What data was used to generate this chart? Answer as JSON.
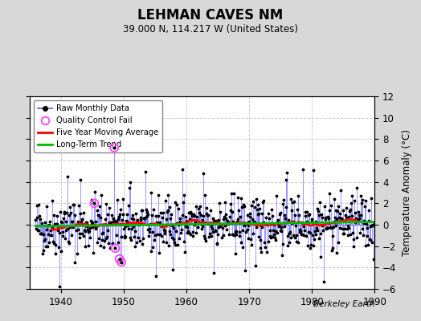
{
  "title": "LEHMAN CAVES NM",
  "subtitle": "39.000 N, 114.217 W (United States)",
  "ylabel": "Temperature Anomaly (°C)",
  "credit": "Berkeley Earth",
  "year_start": 1936,
  "year_end": 1989,
  "ylim": [
    -6,
    12
  ],
  "yticks": [
    -6,
    -4,
    -2,
    0,
    2,
    4,
    6,
    8,
    10,
    12
  ],
  "xticks": [
    1940,
    1950,
    1960,
    1970,
    1980,
    1990
  ],
  "fig_bg": "#d8d8d8",
  "plot_bg": "#ffffff",
  "raw_line_color": "#5555ff",
  "raw_marker_color": "#000000",
  "qc_fail_color": "#ff44ff",
  "moving_avg_color": "#ff0000",
  "trend_color": "#00bb00",
  "seed": 42,
  "qc_fail_indices": [
    150,
    112,
    152,
    160,
    164
  ],
  "extra_anomalies": {
    "150": 7.2,
    "112": 2.0,
    "152": -2.2,
    "160": -3.2,
    "164": -3.5,
    "45": -5.8,
    "230": -4.8,
    "320": 4.8,
    "400": -4.3,
    "510": 5.2,
    "550": -5.3,
    "60": 4.5,
    "85": 4.2,
    "180": 4.0,
    "280": 5.2,
    "340": -4.5,
    "420": -3.8,
    "480": 4.9,
    "530": 5.1
  }
}
